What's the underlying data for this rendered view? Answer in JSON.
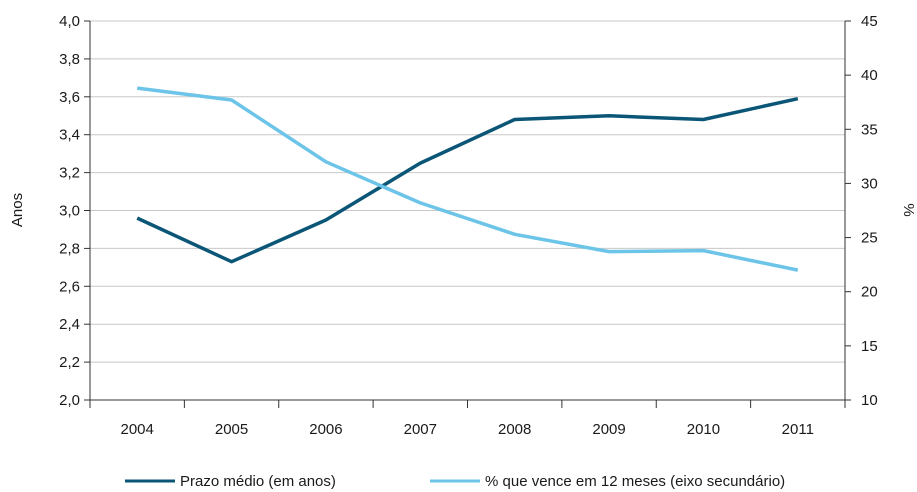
{
  "chart_data": {
    "type": "line",
    "categories": [
      "2004",
      "2005",
      "2006",
      "2007",
      "2008",
      "2009",
      "2010",
      "2011"
    ],
    "y_left": {
      "label": "Anos",
      "range": [
        2.0,
        4.0
      ],
      "ticks": [
        "2,0",
        "2,2",
        "2,4",
        "2,6",
        "2,8",
        "3,0",
        "3,2",
        "3,4",
        "3,6",
        "3,8",
        "4,0"
      ]
    },
    "y_right": {
      "label": "%",
      "range": [
        10,
        45
      ],
      "ticks": [
        "10",
        "15",
        "20",
        "25",
        "30",
        "35",
        "40",
        "45"
      ]
    },
    "series": [
      {
        "name": "Prazo médio (em anos)",
        "axis": "left",
        "color": "#0b5677",
        "values": [
          2.96,
          2.73,
          2.95,
          3.25,
          3.48,
          3.5,
          3.48,
          3.59
        ]
      },
      {
        "name": "% que vence em 12 meses (eixo secundário)",
        "axis": "right",
        "color": "#6cc4e8",
        "values": [
          38.8,
          37.7,
          32.0,
          28.2,
          25.3,
          23.7,
          23.8,
          22.0
        ]
      }
    ],
    "grid": true,
    "legend": "bottom"
  }
}
